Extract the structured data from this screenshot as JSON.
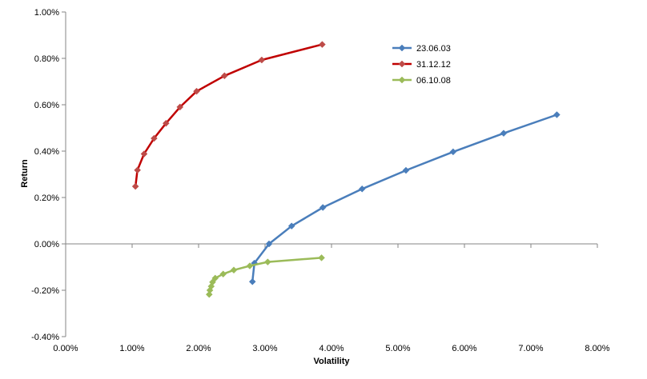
{
  "chart_data": {
    "type": "line",
    "xlabel": "Volatility",
    "ylabel": "Return",
    "xlim": [
      0,
      8
    ],
    "ylim": [
      -0.4,
      1.0
    ],
    "x_ticks": [
      "0.00%",
      "1.00%",
      "2.00%",
      "3.00%",
      "4.00%",
      "5.00%",
      "6.00%",
      "7.00%",
      "8.00%"
    ],
    "y_ticks": [
      "-0.40%",
      "-0.20%",
      "0.00%",
      "0.20%",
      "0.40%",
      "0.60%",
      "0.80%",
      "1.00%"
    ],
    "x_tick_values": [
      0,
      1,
      2,
      3,
      4,
      5,
      6,
      7,
      8
    ],
    "y_tick_values": [
      -0.4,
      -0.2,
      0,
      0.2,
      0.4,
      0.6,
      0.8,
      1.0
    ],
    "grid": false,
    "legend_position": "top-right",
    "series": [
      {
        "name": "23.06.03",
        "color": "#4a7ebb",
        "points": [
          [
            2.81,
            -0.163
          ],
          [
            2.84,
            -0.083
          ],
          [
            3.06,
            0.0
          ],
          [
            3.4,
            0.077
          ],
          [
            3.87,
            0.157
          ],
          [
            4.46,
            0.237
          ],
          [
            5.12,
            0.317
          ],
          [
            5.83,
            0.397
          ],
          [
            6.59,
            0.477
          ],
          [
            7.39,
            0.557
          ]
        ]
      },
      {
        "name": "31.12.12",
        "color": "#be4b48",
        "line_color": "#c00000",
        "points": [
          [
            1.05,
            0.248
          ],
          [
            1.08,
            0.318
          ],
          [
            1.18,
            0.388
          ],
          [
            1.33,
            0.455
          ],
          [
            1.51,
            0.52
          ],
          [
            1.72,
            0.59
          ],
          [
            1.97,
            0.658
          ],
          [
            2.39,
            0.725
          ],
          [
            2.95,
            0.793
          ],
          [
            3.86,
            0.86
          ]
        ]
      },
      {
        "name": "06.10.08",
        "color": "#9bbb59",
        "points": [
          [
            2.16,
            -0.218
          ],
          [
            2.17,
            -0.2
          ],
          [
            2.19,
            -0.183
          ],
          [
            2.21,
            -0.165
          ],
          [
            2.25,
            -0.148
          ],
          [
            2.37,
            -0.13
          ],
          [
            2.53,
            -0.113
          ],
          [
            2.77,
            -0.095
          ],
          [
            3.04,
            -0.078
          ],
          [
            3.85,
            -0.06
          ]
        ]
      }
    ]
  }
}
